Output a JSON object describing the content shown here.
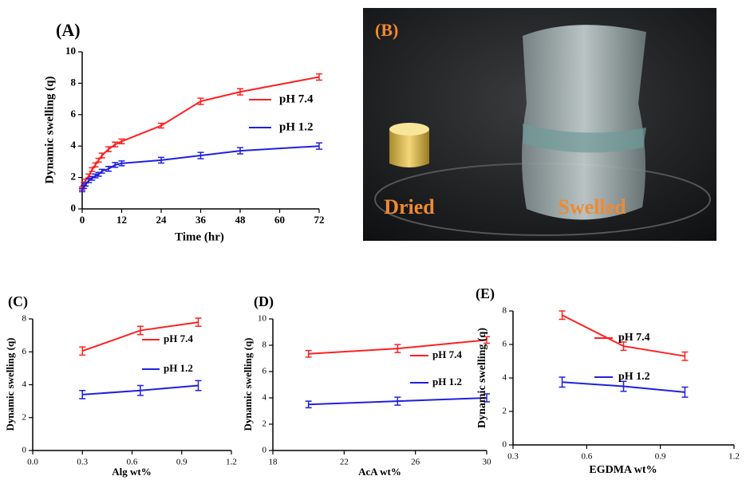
{
  "chart_data": [
    {
      "type": "line",
      "title": "(A)",
      "xlabel": "Time (hr)",
      "ylabel": "Dynamic swelling (q)",
      "x": [
        0,
        0.5,
        1,
        2,
        3,
        4,
        5,
        6,
        8,
        10,
        12,
        24,
        36,
        48,
        72
      ],
      "xlim": [
        0,
        72
      ],
      "xticks": [
        0,
        12,
        24,
        36,
        48,
        60,
        72
      ],
      "ylim": [
        0,
        10
      ],
      "yticks": [
        0,
        2,
        4,
        6,
        8,
        10
      ],
      "series": [
        {
          "name": "pH 7.4",
          "color": "#ff2020",
          "values": [
            1.3,
            1.6,
            1.8,
            2.1,
            2.5,
            2.8,
            3.1,
            3.4,
            3.8,
            4.1,
            4.3,
            5.3,
            6.85,
            7.45,
            8.4
          ],
          "errors": [
            0.1,
            0.1,
            0.1,
            0.12,
            0.12,
            0.12,
            0.12,
            0.15,
            0.15,
            0.15,
            0.15,
            0.15,
            0.2,
            0.2,
            0.2
          ]
        },
        {
          "name": "pH 1.2",
          "color": "#2020e0",
          "values": [
            1.2,
            1.4,
            1.55,
            1.8,
            1.95,
            2.1,
            2.2,
            2.4,
            2.55,
            2.8,
            2.9,
            3.1,
            3.4,
            3.7,
            4.0
          ],
          "errors": [
            0.1,
            0.1,
            0.1,
            0.12,
            0.12,
            0.12,
            0.12,
            0.12,
            0.15,
            0.15,
            0.15,
            0.18,
            0.2,
            0.2,
            0.2
          ]
        }
      ]
    },
    {
      "type": "line",
      "title": "(C)",
      "xlabel": "Alg wt%",
      "ylabel": "Dynamic swelling (q)",
      "x": [
        0.3,
        0.65,
        1.0
      ],
      "xlim": [
        0,
        1.2
      ],
      "xticks": [
        {
          "value": 0,
          "label": "0.0"
        },
        0.3,
        0.6,
        0.9,
        1.2
      ],
      "ylim": [
        0,
        8
      ],
      "yticks": [
        0,
        2,
        4,
        6,
        8
      ],
      "series": [
        {
          "name": "pH 7.4",
          "color": "#ff2020",
          "values": [
            6.05,
            7.3,
            7.8
          ],
          "errors": [
            0.25,
            0.25,
            0.25
          ]
        },
        {
          "name": "pH 1.2",
          "color": "#2020e0",
          "values": [
            3.4,
            3.65,
            3.95
          ],
          "errors": [
            0.25,
            0.3,
            0.3
          ]
        }
      ]
    },
    {
      "type": "line",
      "title": "(D)",
      "xlabel": "AcA wt%",
      "ylabel": "Dynamic swelling (q)",
      "x": [
        20,
        25,
        30
      ],
      "xlim": [
        18,
        30
      ],
      "xticks": [
        18,
        22,
        26,
        30
      ],
      "ylim": [
        0,
        10
      ],
      "yticks": [
        0,
        2,
        4,
        6,
        8,
        10
      ],
      "series": [
        {
          "name": "pH 7.4",
          "color": "#ff2020",
          "values": [
            7.35,
            7.75,
            8.4
          ],
          "errors": [
            0.25,
            0.3,
            0.25
          ]
        },
        {
          "name": "pH 1.2",
          "color": "#2020e0",
          "values": [
            3.5,
            3.75,
            4.0
          ],
          "errors": [
            0.25,
            0.3,
            0.3
          ]
        }
      ]
    },
    {
      "type": "line",
      "title": "(E)",
      "xlabel": "EGDMA wt%",
      "ylabel": "Dynamic swelling (q)",
      "x": [
        0.5,
        0.75,
        1.0
      ],
      "xlim": [
        0.3,
        1.2
      ],
      "xticks": [
        0.3,
        0.6,
        0.9,
        1.2
      ],
      "ylim": [
        0,
        8
      ],
      "yticks": [
        0,
        2,
        4,
        6,
        8
      ],
      "series": [
        {
          "name": "pH 7.4",
          "color": "#ff2020",
          "values": [
            7.75,
            5.9,
            5.3
          ],
          "errors": [
            0.25,
            0.25,
            0.25
          ]
        },
        {
          "name": "pH 1.2",
          "color": "#2020e0",
          "values": [
            3.75,
            3.5,
            3.15
          ],
          "errors": [
            0.3,
            0.3,
            0.3
          ]
        }
      ]
    }
  ],
  "photo": {
    "label": "(B)",
    "captions": [
      "Dried",
      "Swelled"
    ]
  }
}
